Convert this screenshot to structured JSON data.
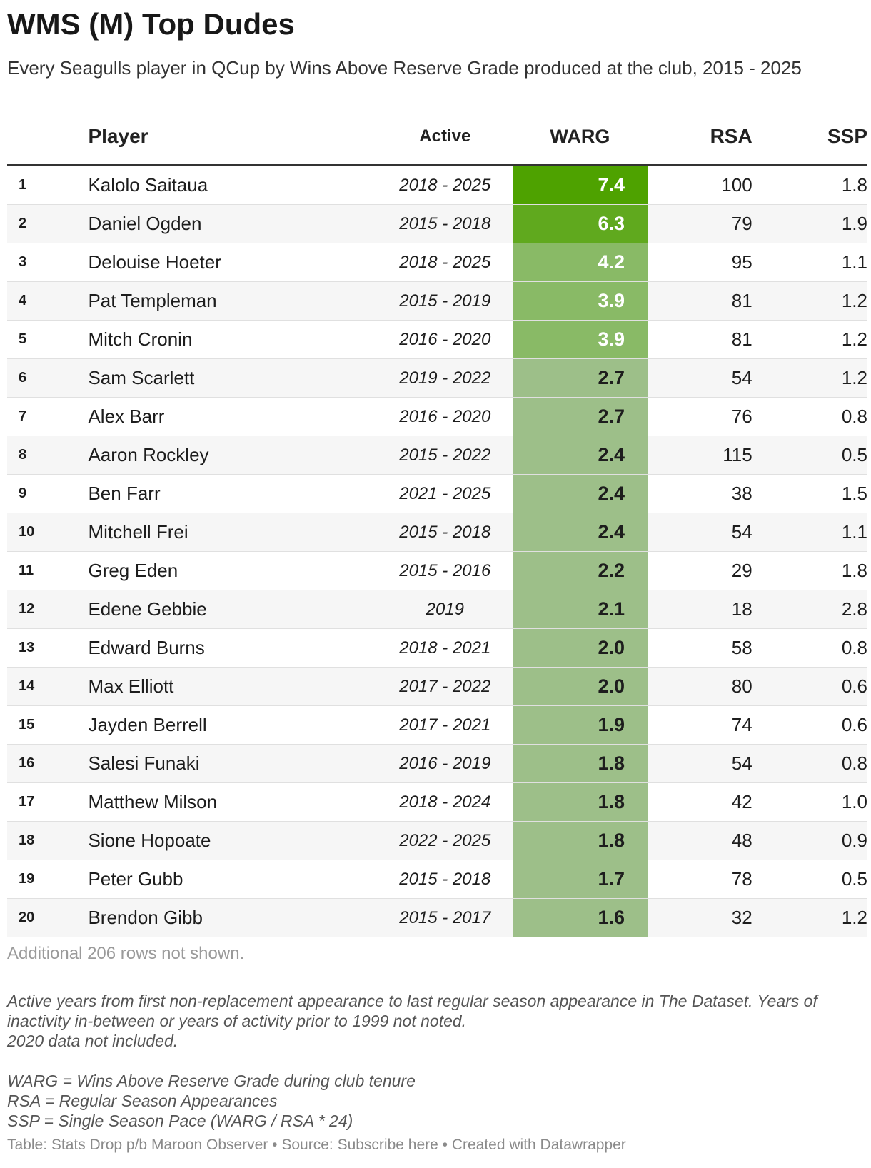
{
  "title": "WMS (M) Top Dudes",
  "subtitle": "Every Seagulls player in QCup by Wins Above Reserve Grade produced at the club, 2015 - 2025",
  "colors": {
    "warg_max": "#4ea200",
    "warg_mid": "#86b960",
    "warg_low": "#9dbf89",
    "header_rule": "#333333",
    "stripe": "#f6f6f6"
  },
  "chart_data": {
    "type": "table",
    "columns": [
      "",
      "Player",
      "Active",
      "WARG",
      "RSA",
      "SSP"
    ],
    "rows": [
      {
        "rank": "1",
        "player": "Kalolo Saitaua",
        "active": "2018 - 2025",
        "warg": "7.4",
        "rsa": "100",
        "ssp": "1.8"
      },
      {
        "rank": "2",
        "player": "Daniel Ogden",
        "active": "2015 - 2018",
        "warg": "6.3",
        "rsa": "79",
        "ssp": "1.9"
      },
      {
        "rank": "3",
        "player": "Delouise Hoeter",
        "active": "2018 - 2025",
        "warg": "4.2",
        "rsa": "95",
        "ssp": "1.1"
      },
      {
        "rank": "4",
        "player": "Pat Templeman",
        "active": "2015 - 2019",
        "warg": "3.9",
        "rsa": "81",
        "ssp": "1.2"
      },
      {
        "rank": "5",
        "player": "Mitch Cronin",
        "active": "2016 - 2020",
        "warg": "3.9",
        "rsa": "81",
        "ssp": "1.2"
      },
      {
        "rank": "6",
        "player": "Sam Scarlett",
        "active": "2019 - 2022",
        "warg": "2.7",
        "rsa": "54",
        "ssp": "1.2"
      },
      {
        "rank": "7",
        "player": "Alex Barr",
        "active": "2016 - 2020",
        "warg": "2.7",
        "rsa": "76",
        "ssp": "0.8"
      },
      {
        "rank": "8",
        "player": "Aaron Rockley",
        "active": "2015 - 2022",
        "warg": "2.4",
        "rsa": "115",
        "ssp": "0.5"
      },
      {
        "rank": "9",
        "player": "Ben Farr",
        "active": "2021 - 2025",
        "warg": "2.4",
        "rsa": "38",
        "ssp": "1.5"
      },
      {
        "rank": "10",
        "player": "Mitchell Frei",
        "active": "2015 - 2018",
        "warg": "2.4",
        "rsa": "54",
        "ssp": "1.1"
      },
      {
        "rank": "11",
        "player": "Greg Eden",
        "active": "2015 - 2016",
        "warg": "2.2",
        "rsa": "29",
        "ssp": "1.8"
      },
      {
        "rank": "12",
        "player": "Edene Gebbie",
        "active": "2019",
        "warg": "2.1",
        "rsa": "18",
        "ssp": "2.8"
      },
      {
        "rank": "13",
        "player": "Edward Burns",
        "active": "2018 - 2021",
        "warg": "2.0",
        "rsa": "58",
        "ssp": "0.8"
      },
      {
        "rank": "14",
        "player": "Max Elliott",
        "active": "2017 - 2022",
        "warg": "2.0",
        "rsa": "80",
        "ssp": "0.6"
      },
      {
        "rank": "15",
        "player": "Jayden Berrell",
        "active": "2017 - 2021",
        "warg": "1.9",
        "rsa": "74",
        "ssp": "0.6"
      },
      {
        "rank": "16",
        "player": "Salesi Funaki",
        "active": "2016 - 2019",
        "warg": "1.8",
        "rsa": "54",
        "ssp": "0.8"
      },
      {
        "rank": "17",
        "player": "Matthew Milson",
        "active": "2018 - 2024",
        "warg": "1.8",
        "rsa": "42",
        "ssp": "1.0"
      },
      {
        "rank": "18",
        "player": "Sione Hopoate",
        "active": "2022 - 2025",
        "warg": "1.8",
        "rsa": "48",
        "ssp": "0.9"
      },
      {
        "rank": "19",
        "player": "Peter Gubb",
        "active": "2015 - 2018",
        "warg": "1.7",
        "rsa": "78",
        "ssp": "0.5"
      },
      {
        "rank": "20",
        "player": "Brendon Gibb",
        "active": "2015 - 2017",
        "warg": "1.6",
        "rsa": "32",
        "ssp": "1.2"
      }
    ]
  },
  "rows_note": "Additional 206 rows not shown.",
  "notes": {
    "line1": "Active years from first non-replacement appearance to last regular season appearance in The Dataset. Years of inactivity in-between or years of activity prior to 1999 not noted.",
    "line2": "2020 data not included.",
    "line3": "WARG = Wins Above Reserve Grade during club tenure",
    "line4": "RSA = Regular Season Appearances",
    "line5": "SSP = Single Season Pace (WARG / RSA * 24)"
  },
  "footer": "Table: Stats Drop p/b Maroon Observer • Source: Subscribe here • Created with Datawrapper"
}
